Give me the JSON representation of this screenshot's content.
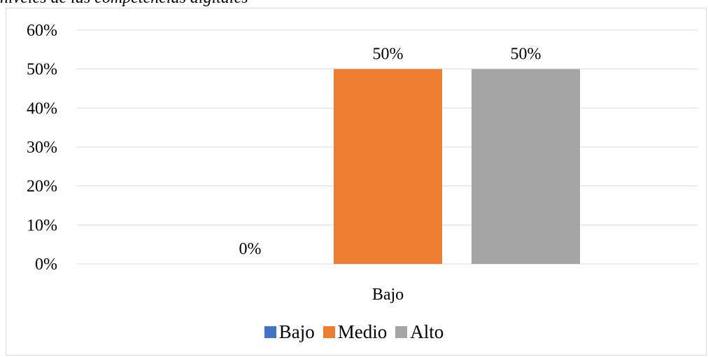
{
  "caption_fragment": "niveles de las competencias digitales",
  "chart_data": {
    "type": "bar",
    "categories": [
      "Bajo"
    ],
    "series": [
      {
        "name": "Bajo",
        "values": [
          0
        ],
        "color": "#4472c4",
        "label": "0%"
      },
      {
        "name": "Medio",
        "values": [
          50
        ],
        "color": "#ed7d31",
        "label": "50%"
      },
      {
        "name": "Alto",
        "values": [
          50
        ],
        "color": "#a5a5a5",
        "label": "50%"
      }
    ],
    "yticks": [
      "0%",
      "10%",
      "20%",
      "30%",
      "40%",
      "50%",
      "60%"
    ],
    "ylim": [
      0,
      60
    ],
    "y_unit": "%",
    "grid": true,
    "gridline_color": "#d9d9d9",
    "legend_position": "bottom"
  }
}
